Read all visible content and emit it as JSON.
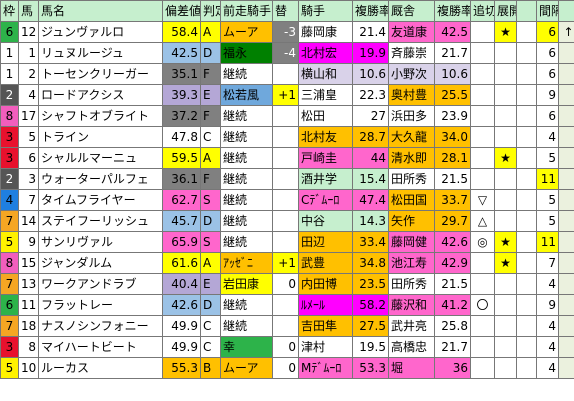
{
  "headers": [
    "枠",
    "馬",
    "馬名",
    "偏差値",
    "判定",
    "前走騎手",
    "替",
    "騎手",
    "複勝率",
    "厩舎",
    "複勝率",
    "追切",
    "展開",
    "展開2",
    "間隔"
  ],
  "waku_colors": {
    "1": "#ffffff",
    "2": "#555555",
    "3": "#e8112d",
    "4": "#1f7fe0",
    "5": "#fff200",
    "6": "#2db34a",
    "7": "#f5a623",
    "8": "#f25ebd"
  },
  "rows": [
    {
      "waku": "6",
      "num": "12",
      "name": "ジュンヴァルロ",
      "dev": "58.4",
      "grade": "A",
      "prev_jockey": "ムーア",
      "change": "-3",
      "jockey": "藤岡康",
      "jrate": "21.4",
      "stable": "友道康",
      "srate": "42.5",
      "oikiri": "",
      "tenkai": "★",
      "tenkai2": "",
      "interval": "6",
      "up": "↑",
      "bg": {
        "dev": "#ffff00",
        "grade": "#ffff00",
        "prev": "#ffc000",
        "change": "#808080",
        "jockey": "",
        "stable": "#ff66cc",
        "tenkai": "#ffff00",
        "interval": "#ffff00"
      }
    },
    {
      "waku": "1",
      "num": "1",
      "name": "リュヌルージュ",
      "dev": "42.5",
      "grade": "D",
      "prev_jockey": "福永",
      "change": "-4",
      "jockey": "北村宏",
      "jrate": "19.9",
      "stable": "斉藤崇",
      "srate": "21.7",
      "oikiri": "",
      "tenkai": "",
      "tenkai2": "",
      "interval": "6",
      "up": "",
      "bg": {
        "dev": "#9bc2e6",
        "grade": "#9bc2e6",
        "prev": "#008000",
        "change": "#808080",
        "jockey": "#ff00ff",
        "stable": "",
        "tenkai": "",
        "interval": ""
      }
    },
    {
      "waku": "1",
      "num": "2",
      "name": "トーセンクリーガー",
      "dev": "35.1",
      "grade": "F",
      "prev_jockey": "継続",
      "change": "",
      "jockey": "横山和",
      "jrate": "10.6",
      "stable": "小野次",
      "srate": "10.6",
      "oikiri": "",
      "tenkai": "",
      "tenkai2": "",
      "interval": "6",
      "up": "",
      "bg": {
        "dev": "#808080",
        "grade": "#808080",
        "prev": "",
        "change": "",
        "jockey": "#d9d2e9",
        "stable": "#d9d2e9",
        "tenkai": "",
        "interval": ""
      }
    },
    {
      "waku": "2",
      "num": "4",
      "name": "ロードアクシス",
      "dev": "39.3",
      "grade": "E",
      "prev_jockey": "松若風",
      "change": "+1",
      "jockey": "三浦皇",
      "jrate": "22.3",
      "stable": "奥村豊",
      "srate": "25.5",
      "oikiri": "",
      "tenkai": "",
      "tenkai2": "",
      "interval": "9",
      "up": "",
      "bg": {
        "dev": "#b4a7d6",
        "grade": "#b4a7d6",
        "prev": "#6fa8dc",
        "change": "#ffff00",
        "jockey": "",
        "stable": "#ffc000",
        "tenkai": "",
        "interval": ""
      }
    },
    {
      "waku": "8",
      "num": "17",
      "name": "シャフトオブライト",
      "dev": "37.2",
      "grade": "F",
      "prev_jockey": "継続",
      "change": "",
      "jockey": "松田",
      "jrate": "27",
      "stable": "浜田多",
      "srate": "23.9",
      "oikiri": "",
      "tenkai": "",
      "tenkai2": "",
      "interval": "6",
      "up": "",
      "bg": {
        "dev": "#808080",
        "grade": "#808080",
        "prev": "",
        "change": "",
        "jockey": "",
        "stable": "",
        "tenkai": "",
        "interval": ""
      }
    },
    {
      "waku": "3",
      "num": "5",
      "name": "トライン",
      "dev": "47.8",
      "grade": "C",
      "prev_jockey": "継続",
      "change": "",
      "jockey": "北村友",
      "jrate": "28.7",
      "stable": "大久龍",
      "srate": "34.0",
      "oikiri": "",
      "tenkai": "",
      "tenkai2": "",
      "interval": "4",
      "up": "",
      "bg": {
        "dev": "",
        "grade": "",
        "prev": "",
        "change": "",
        "jockey": "#ffc000",
        "stable": "#ffc000",
        "tenkai": "",
        "interval": ""
      }
    },
    {
      "waku": "3",
      "num": "6",
      "name": "シャルルマーニュ",
      "dev": "59.5",
      "grade": "A",
      "prev_jockey": "継続",
      "change": "",
      "jockey": "戸崎圭",
      "jrate": "44",
      "stable": "清水即",
      "srate": "28.1",
      "oikiri": "",
      "tenkai": "★",
      "tenkai2": "",
      "interval": "5",
      "up": "",
      "bg": {
        "dev": "#ffff00",
        "grade": "#ffff00",
        "prev": "",
        "change": "",
        "jockey": "#ff66cc",
        "stable": "#ffc000",
        "tenkai": "#ffff00",
        "interval": ""
      }
    },
    {
      "waku": "2",
      "num": "3",
      "name": "ウォーターパルフェ",
      "dev": "36.1",
      "grade": "F",
      "prev_jockey": "継続",
      "change": "",
      "jockey": "酒井学",
      "jrate": "15.4",
      "stable": "田所秀",
      "srate": "21.5",
      "oikiri": "",
      "tenkai": "",
      "tenkai2": "",
      "interval": "11",
      "up": "",
      "bg": {
        "dev": "#808080",
        "grade": "#808080",
        "prev": "",
        "change": "",
        "jockey": "#c6efce",
        "stable": "",
        "tenkai": "",
        "interval": "#ffff00"
      }
    },
    {
      "waku": "4",
      "num": "7",
      "name": "タイムフライヤー",
      "dev": "62.7",
      "grade": "S",
      "prev_jockey": "継続",
      "change": "",
      "jockey": "Cﾃﾞﾑｰﾛ",
      "jrate": "47.4",
      "stable": "松田国",
      "srate": "33.7",
      "oikiri": "▽",
      "tenkai": "",
      "tenkai2": "",
      "interval": "5",
      "up": "",
      "bg": {
        "dev": "#ff66cc",
        "grade": "#ff66cc",
        "prev": "",
        "change": "",
        "jockey": "#ff66cc",
        "stable": "#ffc000",
        "tenkai": "",
        "interval": ""
      }
    },
    {
      "waku": "7",
      "num": "14",
      "name": "ステイフーリッシュ",
      "dev": "45.7",
      "grade": "D",
      "prev_jockey": "継続",
      "change": "",
      "jockey": "中谷",
      "jrate": "14.3",
      "stable": "矢作",
      "srate": "29.7",
      "oikiri": "△",
      "tenkai": "",
      "tenkai2": "",
      "interval": "5",
      "up": "",
      "bg": {
        "dev": "#9bc2e6",
        "grade": "#9bc2e6",
        "prev": "",
        "change": "",
        "jockey": "#c6efce",
        "stable": "#ffc000",
        "tenkai": "",
        "interval": ""
      }
    },
    {
      "waku": "5",
      "num": "9",
      "name": "サンリヴァル",
      "dev": "65.9",
      "grade": "S",
      "prev_jockey": "継続",
      "change": "",
      "jockey": "田辺",
      "jrate": "33.4",
      "stable": "藤岡健",
      "srate": "42.6",
      "oikiri": "◎",
      "tenkai": "★",
      "tenkai2": "",
      "interval": "11",
      "up": "",
      "bg": {
        "dev": "#ff66cc",
        "grade": "#ff66cc",
        "prev": "",
        "change": "",
        "jockey": "#ffc000",
        "stable": "#ff66cc",
        "tenkai": "#ffff00",
        "interval": "#ffff00"
      }
    },
    {
      "waku": "8",
      "num": "15",
      "name": "ジャンダルム",
      "dev": "61.6",
      "grade": "A",
      "prev_jockey": "ｱｯｾﾞﾆ",
      "change": "+1",
      "jockey": "武豊",
      "jrate": "34.8",
      "stable": "池江寿",
      "srate": "42.9",
      "oikiri": "",
      "tenkai": "★",
      "tenkai2": "",
      "interval": "7",
      "up": "",
      "bg": {
        "dev": "#ffff00",
        "grade": "#ffff00",
        "prev": "#ffc000",
        "change": "#ffff00",
        "jockey": "#ffc000",
        "stable": "#ff66cc",
        "tenkai": "#ffff00",
        "interval": ""
      }
    },
    {
      "waku": "7",
      "num": "13",
      "name": "ワークアンドラブ",
      "dev": "40.4",
      "grade": "E",
      "prev_jockey": "岩田康",
      "change": "0",
      "jockey": "内田博",
      "jrate": "23.5",
      "stable": "田所秀",
      "srate": "21.5",
      "oikiri": "",
      "tenkai": "",
      "tenkai2": "",
      "interval": "4",
      "up": "",
      "bg": {
        "dev": "#b4a7d6",
        "grade": "#b4a7d6",
        "prev": "#ffff00",
        "change": "",
        "jockey": "#ffc000",
        "stable": "",
        "tenkai": "",
        "interval": ""
      }
    },
    {
      "waku": "6",
      "num": "11",
      "name": "フラットレー",
      "dev": "42.6",
      "grade": "D",
      "prev_jockey": "継続",
      "change": "",
      "jockey": "ﾙﾒｰﾙ",
      "jrate": "58.2",
      "stable": "藤沢和",
      "srate": "41.2",
      "oikiri": "〇",
      "tenkai": "",
      "tenkai2": "",
      "interval": "9",
      "up": "",
      "bg": {
        "dev": "#9bc2e6",
        "grade": "#9bc2e6",
        "prev": "",
        "change": "",
        "jockey": "#ff00ff",
        "stable": "#ff66cc",
        "tenkai": "",
        "interval": ""
      }
    },
    {
      "waku": "7",
      "num": "18",
      "name": "ナスノシンフォニー",
      "dev": "49.9",
      "grade": "C",
      "prev_jockey": "継続",
      "change": "",
      "jockey": "吉田隼",
      "jrate": "27.5",
      "stable": "武井亮",
      "srate": "25.8",
      "oikiri": "",
      "tenkai": "",
      "tenkai2": "",
      "interval": "4",
      "up": "",
      "bg": {
        "dev": "",
        "grade": "",
        "prev": "",
        "change": "",
        "jockey": "#ffc000",
        "stable": "",
        "tenkai": "",
        "interval": ""
      }
    },
    {
      "waku": "3",
      "num": "8",
      "name": "マイハートビート",
      "dev": "49.9",
      "grade": "C",
      "prev_jockey": "幸",
      "change": "0",
      "jockey": "津村",
      "jrate": "19.5",
      "stable": "高橋忠",
      "srate": "21.7",
      "oikiri": "",
      "tenkai": "",
      "tenkai2": "",
      "interval": "4",
      "up": "",
      "bg": {
        "dev": "",
        "grade": "",
        "prev": "#2db34a",
        "change": "",
        "jockey": "",
        "stable": "",
        "tenkai": "",
        "interval": ""
      }
    },
    {
      "waku": "5",
      "num": "10",
      "name": "ルーカス",
      "dev": "55.3",
      "grade": "B",
      "prev_jockey": "ムーア",
      "change": "0",
      "jockey": "Mﾃﾞﾑｰﾛ",
      "jrate": "53.3",
      "stable": "堀",
      "srate": "36",
      "oikiri": "",
      "tenkai": "",
      "tenkai2": "",
      "interval": "4",
      "up": "",
      "bg": {
        "dev": "#ffc000",
        "grade": "#ffc000",
        "prev": "#ffc000",
        "change": "",
        "jockey": "#ff66cc",
        "stable": "#ff66cc",
        "tenkai": "",
        "interval": ""
      }
    }
  ]
}
